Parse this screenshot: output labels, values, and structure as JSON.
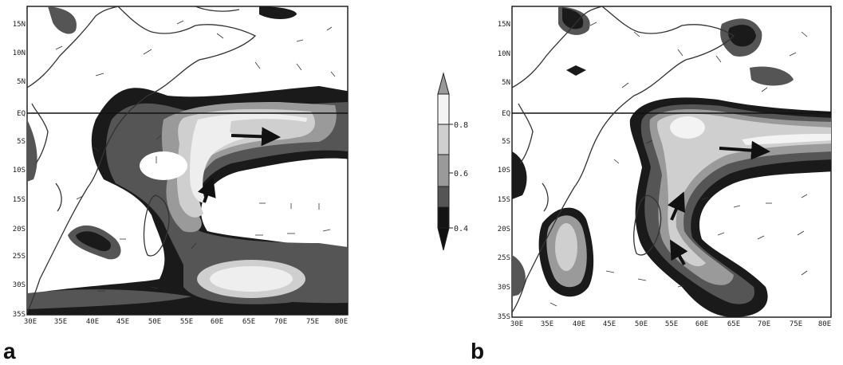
{
  "panels": [
    {
      "letter": "a",
      "lat_ticks": [
        "15N",
        "10N",
        "5N",
        "EQ",
        "5S",
        "10S",
        "15S",
        "20S",
        "25S",
        "30S",
        "35S"
      ],
      "lon_ticks": [
        "30E",
        "35E",
        "40E",
        "45E",
        "50E",
        "55E",
        "60E",
        "65E",
        "70E",
        "75E",
        "80E"
      ]
    },
    {
      "letter": "b",
      "lat_ticks": [
        "15N",
        "10N",
        "5N",
        "EQ",
        "5S",
        "10S",
        "15S",
        "20S",
        "25S",
        "30S",
        "35S"
      ],
      "lon_ticks": [
        "30E",
        "35E",
        "40E",
        "45E",
        "50E",
        "55E",
        "60E",
        "65E",
        "70E",
        "75E",
        "80E"
      ]
    }
  ],
  "colorbar": {
    "labels": [
      "0.8",
      "0.6",
      "0.4"
    ],
    "shades": [
      "#f4f4f4",
      "#cfcfcf",
      "#9a9a9a",
      "#555555",
      "#141414"
    ]
  },
  "colors": {
    "darkest": "#111111",
    "dark": "#4a4a4a",
    "mid": "#8c8c8c",
    "light": "#c9c9c9",
    "lightest": "#f3f3f3"
  }
}
